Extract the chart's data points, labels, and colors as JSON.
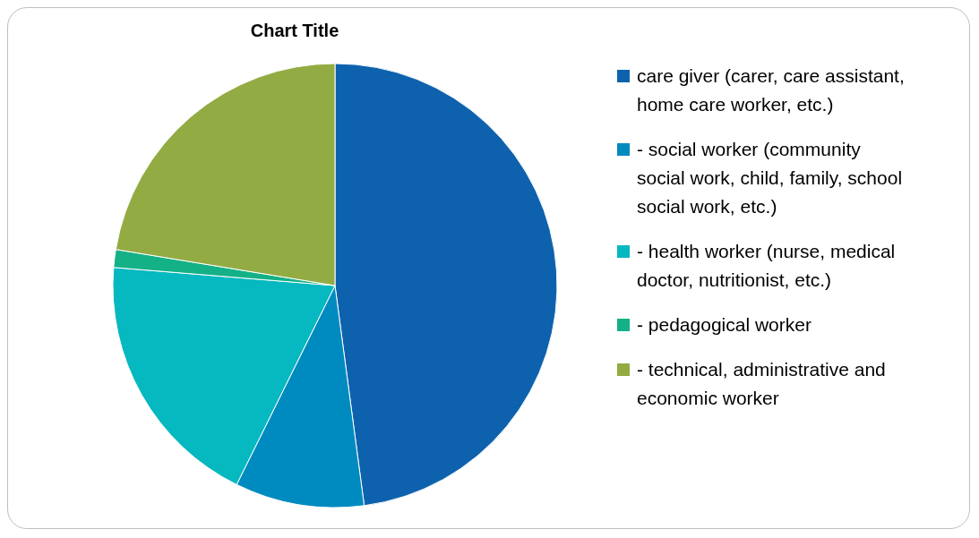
{
  "chart_data": {
    "type": "pie",
    "title": "Chart Title",
    "categories": [
      " care giver (carer, care assistant, home care worker, etc.)",
      "- social worker (community social work, child, family, school social work, etc.)",
      "- health worker (nurse, medical doctor, nutritionist, etc.)",
      "- pedagogical worker",
      "- technical, administrative and economic worker"
    ],
    "values": [
      47.9,
      9.4,
      19.0,
      1.3,
      22.4
    ],
    "colors": [
      "#0e62ad",
      "#008bc0",
      "#06b8bf",
      "#14b187",
      "#93ab43"
    ],
    "legend": "right"
  }
}
